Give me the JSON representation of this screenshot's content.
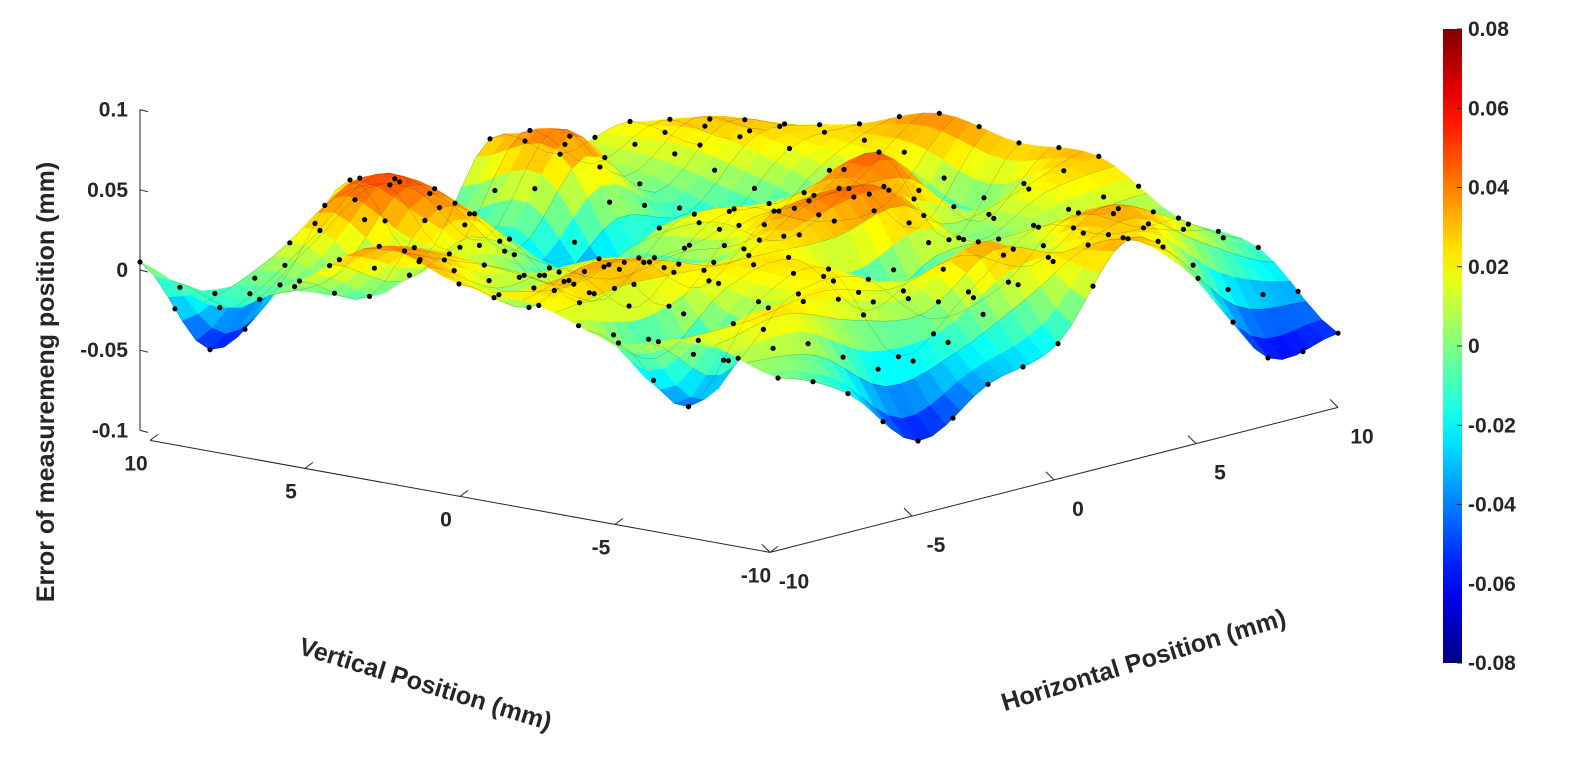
{
  "chart_data": {
    "type": "surface3d",
    "title": "",
    "xlabel": "Horizontal Position (mm)",
    "ylabel": "Vertical Position (mm)",
    "zlabel": "Error of measuremeng position (mm)",
    "x_range": [
      -10,
      10
    ],
    "y_range": [
      -10,
      10
    ],
    "zlim": [
      -0.1,
      0.1
    ],
    "x_ticks": [
      -10,
      -5,
      0,
      5,
      10
    ],
    "y_ticks": [
      10,
      5,
      0,
      -5,
      -10
    ],
    "z_ticks": [
      0.1,
      0.05,
      0,
      -0.05,
      -0.1
    ],
    "x_tick_labels": [
      "-10",
      "-5",
      "0",
      "5",
      "10"
    ],
    "y_tick_labels": [
      "10",
      "5",
      "0",
      "-5",
      "-10"
    ],
    "z_tick_labels": [
      "0.1",
      "0.05",
      "0",
      "-0.05",
      "-0.1"
    ],
    "colormap": "jet",
    "colorbar": {
      "range": [
        -0.08,
        0.08
      ],
      "ticks": [
        0.08,
        0.06,
        0.04,
        0.02,
        0,
        -0.02,
        -0.04,
        -0.06,
        -0.08
      ],
      "tick_labels": [
        "0.08",
        "0.06",
        "0.04",
        "0.02",
        "0",
        "-0.02",
        "-0.04",
        "-0.06",
        "-0.08"
      ]
    },
    "grid": false,
    "markers": "black dots at measurement points",
    "surface": {
      "x": [
        -10,
        -7.5,
        -5,
        -2.5,
        0,
        2.5,
        5,
        7.5,
        10
      ],
      "y": [
        -10,
        -7.5,
        -5,
        -2.5,
        0,
        2.5,
        5,
        7.5,
        10
      ],
      "z": [
        [
          0.0,
          -0.02,
          -0.06,
          -0.035,
          -0.02,
          0.035,
          0.0,
          -0.06,
          -0.055
        ],
        [
          0.015,
          0.025,
          0.02,
          0.01,
          0.035,
          0.015,
          0.035,
          0.015,
          -0.01
        ],
        [
          0.005,
          -0.045,
          0.01,
          0.02,
          -0.045,
          -0.015,
          0.015,
          0.0,
          0.0
        ],
        [
          0.02,
          0.035,
          0.025,
          0.02,
          0.035,
          0.04,
          0.0,
          0.02,
          0.03
        ],
        [
          0.025,
          0.0,
          0.02,
          -0.02,
          0.02,
          0.025,
          0.045,
          -0.02,
          0.03
        ],
        [
          0.04,
          0.025,
          0.0,
          -0.02,
          0.01,
          0.01,
          -0.015,
          0.0,
          0.04
        ],
        [
          0.01,
          -0.01,
          0.035,
          0.005,
          -0.045,
          -0.03,
          -0.02,
          0.02,
          0.025
        ],
        [
          -0.015,
          0.015,
          0.045,
          0.025,
          -0.015,
          0.04,
          0.0,
          0.03,
          0.015
        ],
        [
          0.005,
          -0.06,
          -0.03,
          0.025,
          -0.035,
          0.03,
          0.01,
          0.02,
          -0.005
        ]
      ]
    }
  }
}
